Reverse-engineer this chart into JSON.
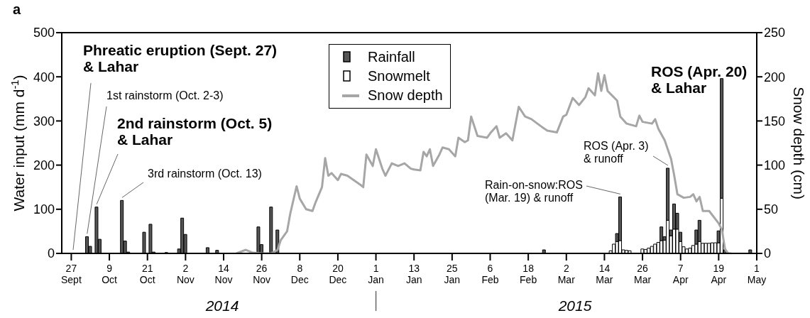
{
  "chart_data": {
    "type": "bar",
    "title": "a",
    "stacked": true,
    "xlabel": null,
    "ylabel": "Water input (mm d$^{-1}$)",
    "y2label": "Snow depth (cm)",
    "x": [
      "2014-10-02",
      "2014-10-03",
      "2014-10-05",
      "2014-10-06",
      "2014-10-13",
      "2014-10-14",
      "2014-10-15",
      "2014-10-20",
      "2014-10-22",
      "2014-10-23",
      "2014-10-27",
      "2014-10-31",
      "2014-11-01",
      "2014-11-02",
      "2014-11-03",
      "2014-11-09",
      "2014-11-12",
      "2014-11-25",
      "2014-11-26",
      "2014-11-29",
      "2014-11-30",
      "2014-12-01",
      "2015-02-23",
      "2015-03-16",
      "2015-03-17",
      "2015-03-18",
      "2015-03-19",
      "2015-03-20",
      "2015-03-21",
      "2015-03-22",
      "2015-03-26",
      "2015-03-27",
      "2015-03-28",
      "2015-03-29",
      "2015-03-30",
      "2015-03-31",
      "2015-04-01",
      "2015-04-02",
      "2015-04-03",
      "2015-04-04",
      "2015-04-05",
      "2015-04-06",
      "2015-04-07",
      "2015-04-08",
      "2015-04-09",
      "2015-04-10",
      "2015-04-11",
      "2015-04-12",
      "2015-04-13",
      "2015-04-14",
      "2015-04-15",
      "2015-04-16",
      "2015-04-17",
      "2015-04-18",
      "2015-04-19",
      "2015-04-20",
      "2015-04-21",
      "2015-04-29"
    ],
    "series": [
      {
        "name": "Snowmelt",
        "color": "#ffffff",
        "values": [
          null,
          null,
          null,
          null,
          null,
          null,
          null,
          null,
          null,
          null,
          null,
          null,
          null,
          null,
          null,
          null,
          null,
          null,
          null,
          null,
          null,
          null,
          null,
          6,
          21,
          27,
          29,
          8,
          7,
          6,
          10,
          9,
          12,
          16,
          21,
          25,
          29,
          30,
          75,
          40,
          55,
          55,
          27,
          15,
          10,
          12,
          18,
          21,
          27,
          23,
          23,
          23,
          24,
          24,
          24,
          125,
          null,
          null
        ]
      },
      {
        "name": "Rainfall",
        "color": "#555555",
        "values": [
          38,
          16,
          105,
          32,
          120,
          28,
          3,
          48,
          66,
          3,
          2,
          10,
          80,
          43,
          null,
          13,
          7,
          60,
          20,
          105,
          null,
          53,
          8,
          null,
          null,
          18,
          99,
          null,
          null,
          null,
          null,
          null,
          null,
          null,
          null,
          null,
          31,
          8,
          118,
          13,
          57,
          36,
          21,
          null,
          null,
          null,
          null,
          32,
          48,
          null,
          null,
          null,
          null,
          null,
          27,
          271,
          8,
          8
        ]
      },
      {
        "name": "Snow depth",
        "type": "line",
        "axis": "y2",
        "color": "#a6a6a6",
        "x": [
          "2014-11-18",
          "2014-11-21",
          "2014-11-23",
          "2014-11-26",
          "2014-11-29",
          "2014-12-01",
          "2014-12-02",
          "2014-12-04",
          "2014-12-05",
          "2014-12-07",
          "2014-12-08",
          "2014-12-10",
          "2014-12-12",
          "2014-12-13",
          "2014-12-15",
          "2014-12-16",
          "2014-12-17",
          "2014-12-18",
          "2014-12-20",
          "2014-12-21",
          "2014-12-23",
          "2014-12-25",
          "2014-12-27",
          "2014-12-28",
          "2014-12-29",
          "2014-12-31",
          "2015-01-01",
          "2015-01-03",
          "2015-01-04",
          "2015-01-06",
          "2015-01-08",
          "2015-01-10",
          "2015-01-12",
          "2015-01-13",
          "2015-01-15",
          "2015-01-16",
          "2015-01-17",
          "2015-01-18",
          "2015-01-19",
          "2015-01-21",
          "2015-01-22",
          "2015-01-24",
          "2015-01-26",
          "2015-01-27",
          "2015-01-29",
          "2015-01-30",
          "2015-01-31",
          "2015-02-02",
          "2015-02-05",
          "2015-02-06",
          "2015-02-08",
          "2015-02-09",
          "2015-02-11",
          "2015-02-13",
          "2015-02-15",
          "2015-02-17",
          "2015-02-19",
          "2015-02-22",
          "2015-02-24",
          "2015-02-27",
          "2015-03-01",
          "2015-03-02",
          "2015-03-04",
          "2015-03-06",
          "2015-03-08",
          "2015-03-09",
          "2015-03-11",
          "2015-03-12",
          "2015-03-13",
          "2015-03-14",
          "2015-03-15",
          "2015-03-18",
          "2015-03-19",
          "2015-03-21",
          "2015-03-24",
          "2015-03-25",
          "2015-03-26",
          "2015-03-29",
          "2015-03-30",
          "2015-03-31",
          "2015-04-02",
          "2015-04-04",
          "2015-04-05",
          "2015-04-06",
          "2015-04-08",
          "2015-04-10",
          "2015-04-11",
          "2015-04-12",
          "2015-04-13",
          "2015-04-14",
          "2015-04-16",
          "2015-04-19",
          "2015-04-20",
          "2015-04-21",
          "2015-04-22",
          "2015-04-23"
        ],
        "values": [
          0,
          4,
          1,
          0,
          0,
          4,
          15,
          25,
          45,
          76,
          62,
          50,
          48,
          58,
          75,
          108,
          88,
          91,
          83,
          90,
          88,
          83,
          78,
          75,
          112,
          99,
          118,
          96,
          88,
          102,
          99,
          102,
          96,
          95,
          94,
          115,
          110,
          118,
          99,
          112,
          120,
          118,
          110,
          131,
          126,
          128,
          155,
          133,
          131,
          136,
          144,
          131,
          136,
          128,
          166,
          155,
          152,
          144,
          139,
          137,
          155,
          157,
          176,
          168,
          177,
          187,
          179,
          204,
          184,
          202,
          184,
          173,
          155,
          147,
          144,
          156,
          149,
          147,
          152,
          141,
          128,
          107,
          88,
          67,
          63,
          64,
          67,
          59,
          64,
          48,
          48,
          34,
          27,
          5,
          0,
          0
        ]
      }
    ],
    "xlim": [
      "2014-09-24",
      "2015-05-01"
    ],
    "xticks": [
      {
        "value": "2014-09-27",
        "label": "27 Sept"
      },
      {
        "value": "2014-10-09",
        "label": "9 Oct"
      },
      {
        "value": "2014-10-21",
        "label": "21 Oct"
      },
      {
        "value": "2014-11-02",
        "label": "2 Nov"
      },
      {
        "value": "2014-11-14",
        "label": "14 Nov"
      },
      {
        "value": "2014-11-26",
        "label": "26 Nov"
      },
      {
        "value": "2014-12-08",
        "label": "8 Dec"
      },
      {
        "value": "2014-12-20",
        "label": "20 Dec"
      },
      {
        "value": "2015-01-01",
        "label": "1 Jan"
      },
      {
        "value": "2015-01-13",
        "label": "13 Jan"
      },
      {
        "value": "2015-01-25",
        "label": "25 Jan"
      },
      {
        "value": "2015-02-06",
        "label": "6 Feb"
      },
      {
        "value": "2015-02-18",
        "label": "18 Feb"
      },
      {
        "value": "2015-03-02",
        "label": "2 Mar"
      },
      {
        "value": "2015-03-14",
        "label": "14 Mar"
      },
      {
        "value": "2015-03-26",
        "label": "26 Mar"
      },
      {
        "value": "2015-04-07",
        "label": "7 Apr"
      },
      {
        "value": "2015-04-19",
        "label": "19 Apr"
      },
      {
        "value": "2015-05-01",
        "label": "1 May"
      }
    ],
    "ylim": [
      0,
      500
    ],
    "yticks": [
      0,
      100,
      200,
      300,
      400,
      500
    ],
    "y2lim": [
      0,
      250
    ],
    "y2ticks": [
      0,
      50,
      100,
      150,
      200,
      250
    ],
    "legend": "top",
    "annotations": [
      "Phreatic eruption (Sept. 27)\n& Lahar",
      {
        "text": "1st rainstorm (Oct. 2-3)",
        "x": "2014-10-02",
        "y": 38
      },
      {
        "text": "2nd rainstorm (Oct. 5)\n& Lahar",
        "x": "2014-10-05",
        "y": 105
      },
      {
        "text": "3rd rainstorm (Oct. 13)",
        "x": "2014-10-13",
        "y": 120
      },
      {
        "text": "Rain-on-snow:ROS\n(Mar. 19) & runoff",
        "x": "2015-03-19",
        "y": 128
      },
      {
        "text": "ROS (Apr. 3)\n& runoff",
        "x": "2015-04-03",
        "y": 193
      },
      {
        "text": "ROS (Apr. 20)\n& Lahar",
        "x": "2015-04-20",
        "y": 396
      },
      "2014",
      "2015"
    ]
  }
}
